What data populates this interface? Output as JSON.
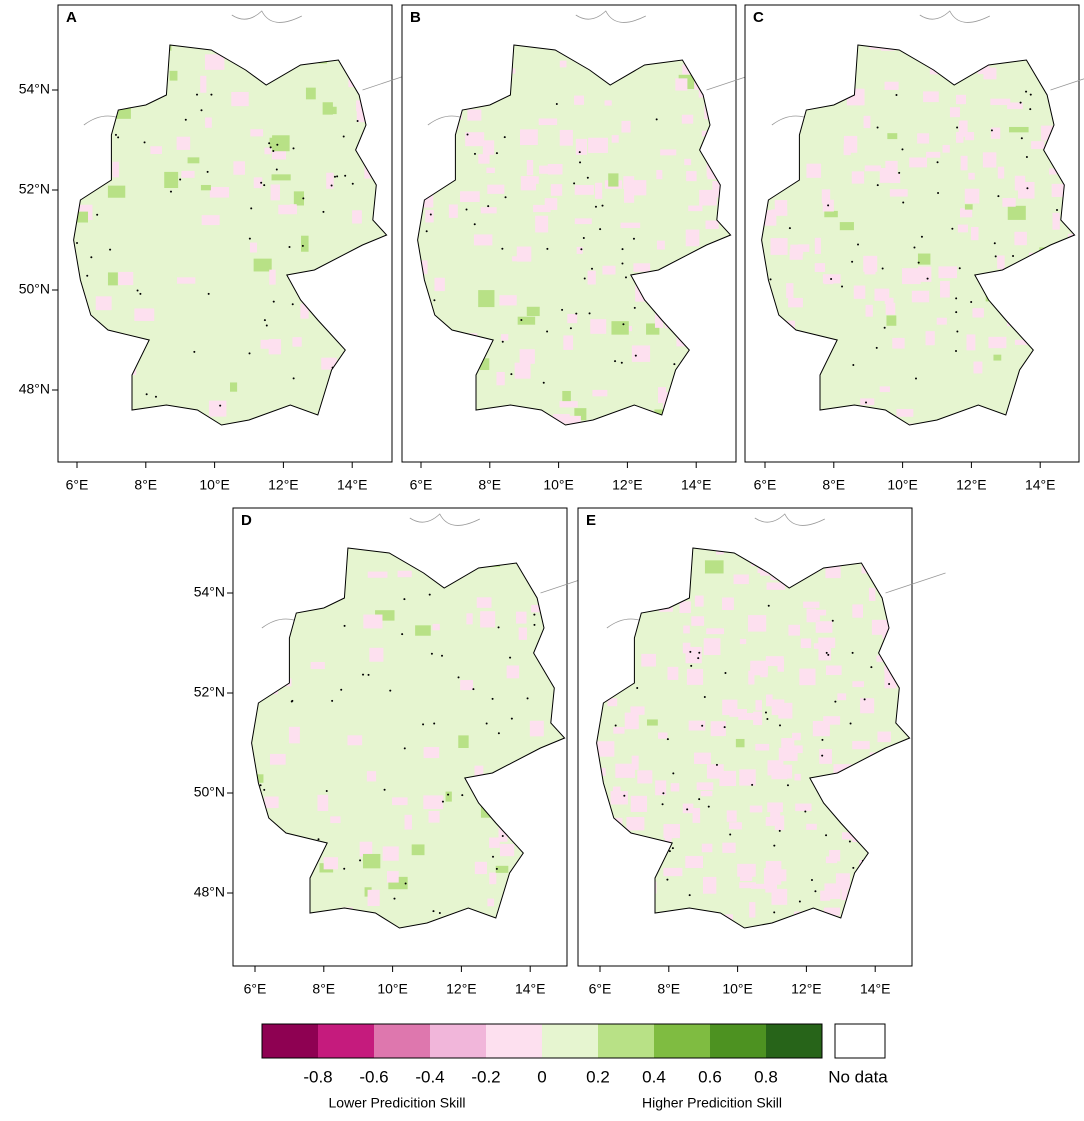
{
  "panels": [
    {
      "label": "A",
      "lat_ticks": [
        {
          "value": 54,
          "label": "54°N"
        },
        {
          "value": 52,
          "label": "52°N"
        },
        {
          "value": 50,
          "label": "50°N"
        },
        {
          "value": 48,
          "label": "48°N"
        }
      ],
      "lon_ticks": [
        {
          "value": 6,
          "label": "6°E"
        },
        {
          "value": 8,
          "label": "8°E"
        },
        {
          "value": 10,
          "label": "10°E"
        },
        {
          "value": 12,
          "label": "12°E"
        },
        {
          "value": 14,
          "label": "14°E"
        }
      ]
    },
    {
      "label": "B",
      "lon_ticks": [
        {
          "value": 6,
          "label": "6°E"
        },
        {
          "value": 8,
          "label": "8°E"
        },
        {
          "value": 10,
          "label": "10°E"
        },
        {
          "value": 12,
          "label": "12°E"
        },
        {
          "value": 14,
          "label": "14°E"
        }
      ]
    },
    {
      "label": "C",
      "lon_ticks": [
        {
          "value": 6,
          "label": "6°E"
        },
        {
          "value": 8,
          "label": "8°E"
        },
        {
          "value": 10,
          "label": "10°E"
        },
        {
          "value": 12,
          "label": "12°E"
        },
        {
          "value": 14,
          "label": "14°E"
        }
      ]
    },
    {
      "label": "D",
      "lat_ticks": [
        {
          "value": 54,
          "label": "54°N"
        },
        {
          "value": 52,
          "label": "52°N"
        },
        {
          "value": 50,
          "label": "50°N"
        },
        {
          "value": 48,
          "label": "48°N"
        }
      ],
      "lon_ticks": [
        {
          "value": 6,
          "label": "6°E"
        },
        {
          "value": 8,
          "label": "8°E"
        },
        {
          "value": 10,
          "label": "10°E"
        },
        {
          "value": 12,
          "label": "12°E"
        },
        {
          "value": 14,
          "label": "14°E"
        }
      ]
    },
    {
      "label": "E",
      "lon_ticks": [
        {
          "value": 6,
          "label": "6°E"
        },
        {
          "value": 8,
          "label": "8°E"
        },
        {
          "value": 10,
          "label": "10°E"
        },
        {
          "value": 12,
          "label": "12°E"
        },
        {
          "value": 14,
          "label": "14°E"
        }
      ]
    }
  ],
  "colorbar": {
    "colors": [
      "#8e0152",
      "#c51b7d",
      "#de77ae",
      "#f1b6da",
      "#fde0ef",
      "#e6f5d0",
      "#b8e186",
      "#7fbc41",
      "#4d9221",
      "#276419"
    ],
    "ticks": [
      -0.8,
      -0.6,
      -0.4,
      -0.2,
      0,
      0.2,
      0.4,
      0.6,
      0.8
    ],
    "no_data": "No data",
    "low_label": "Lower Predicition Skill",
    "high_label": "Higher Predicition Skill"
  }
}
